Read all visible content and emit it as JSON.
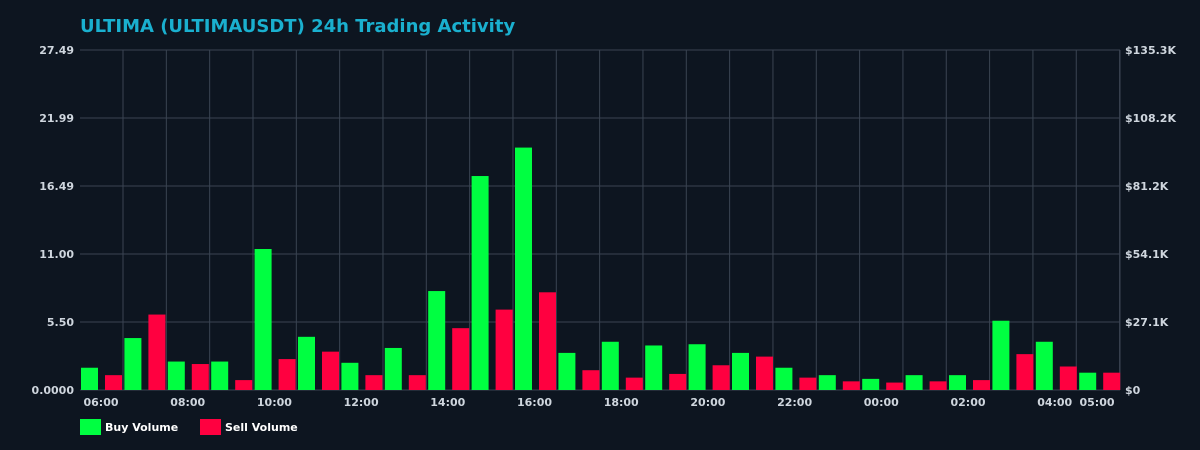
{
  "chart_data": {
    "type": "bar",
    "title": "ULTIMA (ULTIMAUSDT) 24h Trading Activity",
    "colors": {
      "buy": "#00ff41",
      "sell": "#ff0040",
      "background": "#0d1520",
      "title": "#1ab0cf"
    },
    "left_axis": {
      "ticks": [
        "0.0000",
        "5.50",
        "11.00",
        "16.49",
        "21.99",
        "27.49"
      ],
      "ylim": [
        0,
        27.49
      ]
    },
    "right_axis": {
      "ticks": [
        "$0",
        "$27.1K",
        "$54.1K",
        "$81.2K",
        "$108.2K",
        "$135.3K"
      ]
    },
    "x_tick_labels": [
      "06:00",
      "08:00",
      "10:00",
      "12:00",
      "14:00",
      "16:00",
      "18:00",
      "20:00",
      "22:00",
      "00:00",
      "02:00",
      "04:00",
      "05:00"
    ],
    "grid": true,
    "legend_position": "bottom-left",
    "series": [
      {
        "name": "Buy Volume",
        "color": "#00ff41",
        "values": [
          1.8,
          4.2,
          2.3,
          2.3,
          11.4,
          4.3,
          2.2,
          3.4,
          8.0,
          17.3,
          19.6,
          3.0,
          3.9,
          3.6,
          3.7,
          3.0,
          1.8,
          1.2,
          0.9,
          1.2,
          1.2,
          5.6,
          3.9,
          1.4
        ]
      },
      {
        "name": "Sell Volume",
        "color": "#ff0040",
        "values": [
          1.2,
          6.1,
          2.1,
          0.8,
          2.5,
          3.1,
          1.2,
          1.2,
          5.0,
          6.5,
          7.9,
          1.6,
          1.0,
          1.3,
          2.0,
          2.7,
          1.0,
          0.7,
          0.6,
          0.7,
          0.8,
          2.9,
          1.9,
          1.4
        ]
      }
    ]
  }
}
